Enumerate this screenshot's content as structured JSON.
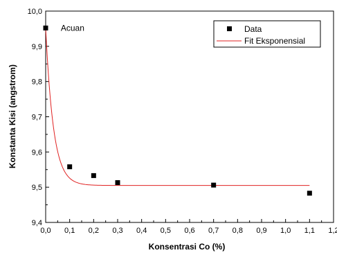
{
  "chart_data": {
    "type": "scatter",
    "xlabel": "Konsentrasi Co (%)",
    "ylabel": "Konstanta Kisi (angstrom)",
    "xlim": [
      0.0,
      1.2
    ],
    "ylim": [
      9.4,
      10.0
    ],
    "x_ticks": [
      "0,0",
      "0,1",
      "0,2",
      "0,3",
      "0,4",
      "0,5",
      "0,6",
      "0,7",
      "0,8",
      "0,9",
      "1,0",
      "1,1",
      "1,2"
    ],
    "y_ticks": [
      "9,4",
      "9,5",
      "9,6",
      "9,7",
      "9,8",
      "9,9",
      "10,0"
    ],
    "grid": false,
    "legend_position": "top-right",
    "series": [
      {
        "name": "Data",
        "kind": "points",
        "marker": "square",
        "color": "#000000",
        "x": [
          0.0,
          0.1,
          0.2,
          0.3,
          0.7,
          1.1
        ],
        "y": [
          9.952,
          9.558,
          9.533,
          9.513,
          9.506,
          9.483
        ]
      },
      {
        "name": "Fit Eksponensial",
        "kind": "line",
        "color": "#e02020",
        "model": "y = y0 + A*exp(-x/t)",
        "params": {
          "y0": 9.505,
          "A": 0.447,
          "t": 0.0326
        }
      }
    ],
    "annotations": [
      {
        "text": "Acuan",
        "x": 0.04,
        "y": 9.952
      }
    ]
  }
}
